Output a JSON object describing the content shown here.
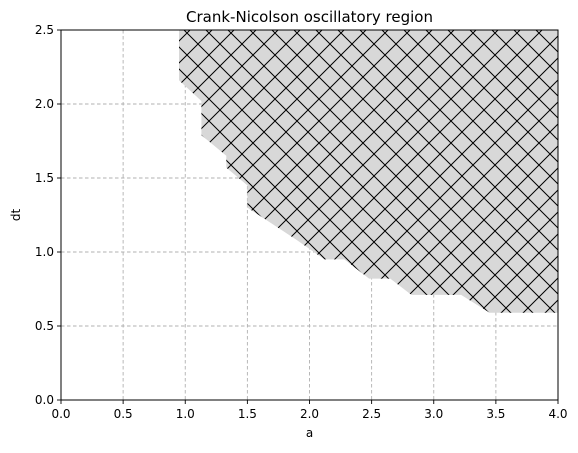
{
  "chart_data": {
    "type": "area",
    "title": "Crank-Nicolson oscillatory region",
    "xlabel": "a",
    "ylabel": "dt",
    "xlim": [
      0.0,
      4.0
    ],
    "ylim": [
      0.0,
      2.5
    ],
    "xticks": [
      "0.0",
      "0.5",
      "1.0",
      "1.5",
      "2.0",
      "2.5",
      "3.0",
      "3.5",
      "4.0"
    ],
    "yticks": [
      "0.0",
      "0.5",
      "1.0",
      "1.5",
      "2.0",
      "2.5"
    ],
    "grid": true,
    "region": {
      "fill_color": "#d8d8d8",
      "hatch": "crosshatch",
      "hatch_color": "#000000",
      "boundary": [
        {
          "x": 0.95,
          "y": 2.5
        },
        {
          "x": 4.0,
          "y": 2.5
        },
        {
          "x": 4.0,
          "y": 0.59
        },
        {
          "x": 3.45,
          "y": 0.59
        },
        {
          "x": 3.22,
          "y": 0.71
        },
        {
          "x": 2.82,
          "y": 0.71
        },
        {
          "x": 2.65,
          "y": 0.82
        },
        {
          "x": 2.48,
          "y": 0.82
        },
        {
          "x": 2.28,
          "y": 0.95
        },
        {
          "x": 2.12,
          "y": 0.95
        },
        {
          "x": 1.9,
          "y": 1.08
        },
        {
          "x": 1.5,
          "y": 1.3
        },
        {
          "x": 1.5,
          "y": 1.45
        },
        {
          "x": 1.33,
          "y": 1.57
        },
        {
          "x": 1.33,
          "y": 1.65
        },
        {
          "x": 1.13,
          "y": 1.79
        },
        {
          "x": 1.13,
          "y": 2.02
        },
        {
          "x": 0.95,
          "y": 2.16
        }
      ]
    }
  }
}
